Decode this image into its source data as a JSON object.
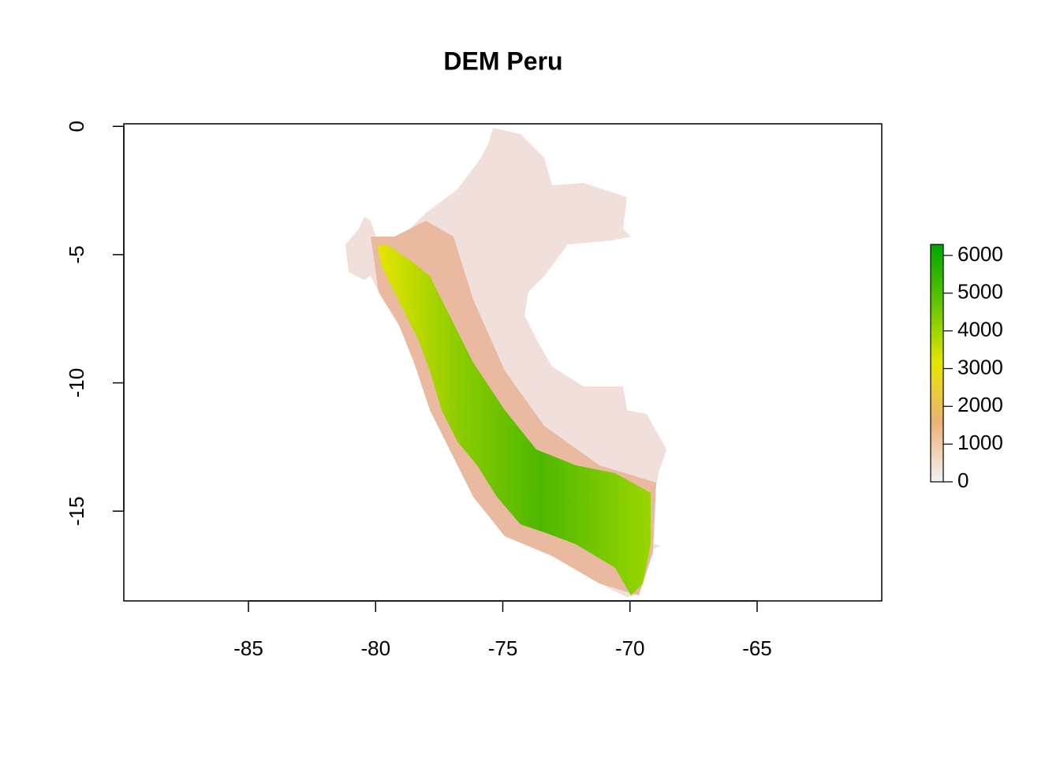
{
  "chart_data": {
    "type": "raster",
    "title": "DEM Peru",
    "xlim": [
      -89.9,
      -60.1
    ],
    "xticks": [
      -85,
      -80,
      -75,
      -70,
      -65
    ],
    "ylim": [
      -18.5,
      0.1
    ],
    "yticks": [
      0,
      -5,
      -10,
      -15
    ],
    "legend": {
      "lim": [
        0,
        6290
      ],
      "ticks": [
        0,
        1000,
        2000,
        3000,
        4000,
        5000,
        6000
      ],
      "colors": [
        "#F2F2F2",
        "#ECB176",
        "#E6E600",
        "#63C600",
        "#00A600"
      ]
    }
  }
}
